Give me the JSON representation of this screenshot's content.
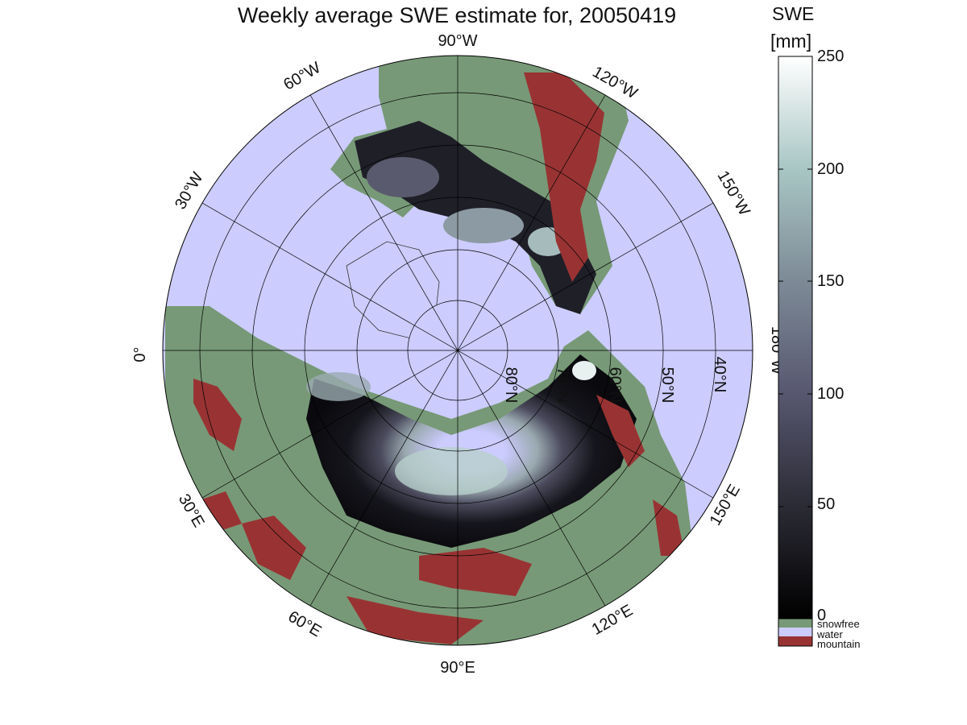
{
  "title": "Weekly average SWE estimate for, 20050419",
  "colorbar": {
    "title_line1": "SWE",
    "title_line2": "[mm]",
    "ticks": [
      "0",
      "50",
      "100",
      "150",
      "200",
      "250"
    ],
    "tick_values": [
      0,
      50,
      100,
      150,
      200,
      250
    ],
    "range": [
      0,
      250
    ],
    "colormap": [
      "#000000",
      "#2b2b35",
      "#575770",
      "#7d8a96",
      "#a8c6c4",
      "#ffffff"
    ]
  },
  "legend": {
    "snowfree": "snowfree",
    "water": "water",
    "mountain": "mountain"
  },
  "colors": {
    "snowfree": "#779977",
    "water": "#ccccff",
    "mountain": "#993333"
  },
  "map": {
    "projection": "north polar stereographic",
    "longitude_labels": [
      "90°W",
      "120°W",
      "150°W",
      "180°W",
      "150°E",
      "120°E",
      "90°E",
      "60°E",
      "30°E",
      "0°",
      "30°W",
      "60°W"
    ],
    "latitude_labels": [
      "80°N",
      "70°N",
      "60°N",
      "50°N",
      "40°N"
    ]
  }
}
